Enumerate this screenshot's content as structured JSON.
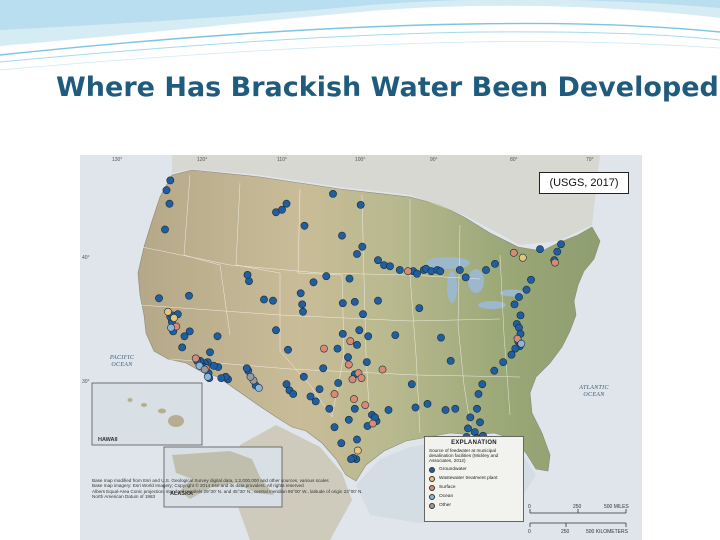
{
  "slide": {
    "title": "Where Has Brackish Water Been Developed?",
    "citation": "(USGS, 2017)"
  },
  "map": {
    "longitude_ticks": [
      "130°",
      "120°",
      "110°",
      "100°",
      "90°",
      "80°",
      "70°"
    ],
    "latitude_ticks": [
      "40°",
      "30°"
    ],
    "labels": {
      "pacific_ocean": "PACIFIC OCEAN",
      "atlantic_ocean": "ATLANTIC OCEAN",
      "hawaii": "HAWAII",
      "alaska": "ALASKA"
    },
    "credit_lines": [
      "Base map modified from Esri and U.S. Geological Survey digital data, 1:2,000,000 and other sources, various scales",
      "Base map imagery: Esri World Imagery; Copyright © 2014 Esri and its data providers. All rights reserved",
      "Albers Equal-Area Conic projection, standard parallels 29°30' N. and 45°30' N., central meridian 96°00' W., latitude of origin 23°00' N.",
      "North American Datum of 1983"
    ],
    "legend": {
      "title": "EXPLANATION",
      "subtitle": "Source of feedwater at municipal desalination facilities (Mickley and Associates, 2012)",
      "items": [
        {
          "label": "Groundwater",
          "color": "#1f5fa0"
        },
        {
          "label": "Wastewater treatment plant",
          "color": "#e8c47a"
        },
        {
          "label": "Surface",
          "color": "#d98a74"
        },
        {
          "label": "Ocean",
          "color": "#8ab6dc"
        },
        {
          "label": "Other",
          "color": "#9a9a9a"
        }
      ]
    },
    "scale": {
      "miles": [
        "0",
        "250",
        "500 MILES"
      ],
      "kilometers": [
        "0",
        "250",
        "500 KILOMETERS"
      ]
    },
    "sites": [
      {
        "type": "Groundwater",
        "lon": -122.3,
        "lat": 48.9
      },
      {
        "type": "Groundwater",
        "lon": -122.8,
        "lat": 48.1
      },
      {
        "type": "Groundwater",
        "lon": -108.2,
        "lat": 46.3
      },
      {
        "type": "Groundwater",
        "lon": -107.4,
        "lat": 46.5
      },
      {
        "type": "Groundwater",
        "lon": -106.8,
        "lat": 47.0
      },
      {
        "type": "Groundwater",
        "lon": -100.6,
        "lat": 47.8
      },
      {
        "type": "Groundwater",
        "lon": -96.9,
        "lat": 46.9
      },
      {
        "type": "Groundwater",
        "lon": -104.4,
        "lat": 45.2
      },
      {
        "type": "Groundwater",
        "lon": -99.4,
        "lat": 44.4
      },
      {
        "type": "Groundwater",
        "lon": -96.7,
        "lat": 43.5
      },
      {
        "type": "Groundwater",
        "lon": -97.4,
        "lat": 42.9
      },
      {
        "type": "Groundwater",
        "lon": -94.6,
        "lat": 42.4
      },
      {
        "type": "Groundwater",
        "lon": -93.8,
        "lat": 42.0
      },
      {
        "type": "Groundwater",
        "lon": -93.0,
        "lat": 41.9
      },
      {
        "type": "Groundwater",
        "lon": -91.7,
        "lat": 41.6
      },
      {
        "type": "Groundwater",
        "lon": -89.9,
        "lat": 41.5
      },
      {
        "type": "Groundwater",
        "lon": -89.4,
        "lat": 41.3
      },
      {
        "type": "Groundwater",
        "lon": -88.5,
        "lat": 41.6
      },
      {
        "type": "Groundwater",
        "lon": -88.2,
        "lat": 41.7
      },
      {
        "type": "Surface",
        "lon": -90.6,
        "lat": 41.5
      },
      {
        "type": "Groundwater",
        "lon": -87.5,
        "lat": 41.5
      },
      {
        "type": "Groundwater",
        "lon": -86.7,
        "lat": 41.6
      },
      {
        "type": "Groundwater",
        "lon": -86.3,
        "lat": 41.5
      },
      {
        "type": "Groundwater",
        "lon": -83.7,
        "lat": 41.6
      },
      {
        "type": "Groundwater",
        "lon": -82.9,
        "lat": 41.0
      },
      {
        "type": "Groundwater",
        "lon": -80.2,
        "lat": 41.6
      },
      {
        "type": "Groundwater",
        "lon": -79.0,
        "lat": 42.1
      },
      {
        "type": "Wastewater treatment plant",
        "lon": -75.3,
        "lat": 42.6
      },
      {
        "type": "Surface",
        "lon": -76.5,
        "lat": 43.0
      },
      {
        "type": "Groundwater",
        "lon": -73.0,
        "lat": 43.3
      },
      {
        "type": "Groundwater",
        "lon": -71.1,
        "lat": 42.4
      },
      {
        "type": "Groundwater",
        "lon": -70.7,
        "lat": 43.1
      },
      {
        "type": "Surface",
        "lon": -71.0,
        "lat": 42.2
      },
      {
        "type": "Groundwater",
        "lon": -70.2,
        "lat": 43.7
      },
      {
        "type": "Groundwater",
        "lon": -74.2,
        "lat": 40.8
      },
      {
        "type": "Groundwater",
        "lon": -74.8,
        "lat": 40.0
      },
      {
        "type": "Groundwater",
        "lon": -75.8,
        "lat": 39.4
      },
      {
        "type": "Groundwater",
        "lon": -76.4,
        "lat": 38.8
      },
      {
        "type": "Groundwater",
        "lon": -75.6,
        "lat": 37.9
      },
      {
        "type": "Groundwater",
        "lon": -76.1,
        "lat": 37.2
      },
      {
        "type": "Groundwater",
        "lon": -75.8,
        "lat": 36.9
      },
      {
        "type": "Groundwater",
        "lon": -75.6,
        "lat": 36.4
      },
      {
        "type": "Groundwater",
        "lon": -75.9,
        "lat": 35.8
      },
      {
        "type": "Groundwater",
        "lon": -75.7,
        "lat": 35.4
      },
      {
        "type": "Groundwater",
        "lon": -76.3,
        "lat": 35.2
      },
      {
        "type": "Groundwater",
        "lon": -76.8,
        "lat": 34.7
      },
      {
        "type": "Groundwater",
        "lon": -77.9,
        "lat": 34.1
      },
      {
        "type": "Groundwater",
        "lon": -79.1,
        "lat": 33.4
      },
      {
        "type": "Groundwater",
        "lon": -80.7,
        "lat": 32.3
      },
      {
        "type": "Groundwater",
        "lon": -81.2,
        "lat": 31.5
      },
      {
        "type": "Surface",
        "lon": -76.0,
        "lat": 36.0
      },
      {
        "type": "Ocean",
        "lon": -75.5,
        "lat": 35.6
      },
      {
        "type": "Groundwater",
        "lon": -81.4,
        "lat": 30.3
      },
      {
        "type": "Groundwater",
        "lon": -81.0,
        "lat": 29.2
      },
      {
        "type": "Groundwater",
        "lon": -80.6,
        "lat": 28.1
      },
      {
        "type": "Groundwater",
        "lon": -80.4,
        "lat": 27.4
      },
      {
        "type": "Groundwater",
        "lon": -80.2,
        "lat": 26.7
      },
      {
        "type": "Groundwater",
        "lon": -80.1,
        "lat": 26.2
      },
      {
        "type": "Groundwater",
        "lon": -80.3,
        "lat": 25.8
      },
      {
        "type": "Groundwater",
        "lon": -80.5,
        "lat": 25.5
      },
      {
        "type": "Groundwater",
        "lon": -81.8,
        "lat": 26.1
      },
      {
        "type": "Groundwater",
        "lon": -82.0,
        "lat": 26.6
      },
      {
        "type": "Groundwater",
        "lon": -82.4,
        "lat": 27.0
      },
      {
        "type": "Groundwater",
        "lon": -82.6,
        "lat": 27.6
      },
      {
        "type": "Groundwater",
        "lon": -82.8,
        "lat": 28.0
      },
      {
        "type": "Groundwater",
        "lon": -82.6,
        "lat": 28.7
      },
      {
        "type": "Groundwater",
        "lon": -81.7,
        "lat": 28.4
      },
      {
        "type": "Groundwater",
        "lon": -81.4,
        "lat": 27.9
      },
      {
        "type": "Groundwater",
        "lon": -81.1,
        "lat": 27.2
      },
      {
        "type": "Groundwater",
        "lon": -80.9,
        "lat": 26.4
      },
      {
        "type": "Groundwater",
        "lon": -81.3,
        "lat": 25.9
      },
      {
        "type": "Groundwater",
        "lon": -80.8,
        "lat": 25.1
      },
      {
        "type": "Groundwater",
        "lon": -81.6,
        "lat": 24.6
      },
      {
        "type": "Groundwater",
        "lon": -80.5,
        "lat": 24.9
      },
      {
        "type": "Wastewater treatment plant",
        "lon": -80.4,
        "lat": 26.0
      },
      {
        "type": "Wastewater treatment plant",
        "lon": -81.5,
        "lat": 26.8
      },
      {
        "type": "Surface",
        "lon": -82.1,
        "lat": 27.3
      },
      {
        "type": "Ocean",
        "lon": -80.7,
        "lat": 25.7
      },
      {
        "type": "Groundwater",
        "lon": -84.3,
        "lat": 30.3
      },
      {
        "type": "Groundwater",
        "lon": -85.6,
        "lat": 30.2
      },
      {
        "type": "Groundwater",
        "lon": -82.3,
        "lat": 29.6
      },
      {
        "type": "Groundwater",
        "lon": -88.0,
        "lat": 30.7
      },
      {
        "type": "Groundwater",
        "lon": -89.6,
        "lat": 30.4
      },
      {
        "type": "Groundwater",
        "lon": -90.1,
        "lat": 32.3
      },
      {
        "type": "Groundwater",
        "lon": -84.9,
        "lat": 34.2
      },
      {
        "type": "Groundwater",
        "lon": -86.2,
        "lat": 36.1
      },
      {
        "type": "Groundwater",
        "lon": -89.1,
        "lat": 38.5
      },
      {
        "type": "Groundwater",
        "lon": -92.3,
        "lat": 36.3
      },
      {
        "type": "Groundwater",
        "lon": -97.4,
        "lat": 35.5
      },
      {
        "type": "Groundwater",
        "lon": -95.9,
        "lat": 36.2
      },
      {
        "type": "Groundwater",
        "lon": -97.1,
        "lat": 36.7
      },
      {
        "type": "Groundwater",
        "lon": -99.3,
        "lat": 36.4
      },
      {
        "type": "Groundwater",
        "lon": -100.0,
        "lat": 35.2
      },
      {
        "type": "Groundwater",
        "lon": -98.6,
        "lat": 34.5
      },
      {
        "type": "Groundwater",
        "lon": -96.1,
        "lat": 34.1
      },
      {
        "type": "Groundwater",
        "lon": -97.7,
        "lat": 33.1
      },
      {
        "type": "Groundwater",
        "lon": -99.9,
        "lat": 32.4
      },
      {
        "type": "Groundwater",
        "lon": -101.9,
        "lat": 33.6
      },
      {
        "type": "Groundwater",
        "lon": -102.4,
        "lat": 31.9
      },
      {
        "type": "Groundwater",
        "lon": -103.6,
        "lat": 31.3
      },
      {
        "type": "Groundwater",
        "lon": -104.5,
        "lat": 32.9
      },
      {
        "type": "Groundwater",
        "lon": -106.6,
        "lat": 35.1
      },
      {
        "type": "Groundwater",
        "lon": -106.8,
        "lat": 32.3
      },
      {
        "type": "Groundwater",
        "lon": -106.4,
        "lat": 31.8
      },
      {
        "type": "Groundwater",
        "lon": -105.9,
        "lat": 31.5
      },
      {
        "type": "Groundwater",
        "lon": -108.2,
        "lat": 36.7
      },
      {
        "type": "Groundwater",
        "lon": -110.9,
        "lat": 32.2
      },
      {
        "type": "Groundwater",
        "lon": -111.9,
        "lat": 33.4
      },
      {
        "type": "Groundwater",
        "lon": -112.1,
        "lat": 33.6
      },
      {
        "type": "Groundwater",
        "lon": -114.6,
        "lat": 32.7
      },
      {
        "type": "Groundwater",
        "lon": -114.9,
        "lat": 32.9
      },
      {
        "type": "Groundwater",
        "lon": -115.5,
        "lat": 32.8
      },
      {
        "type": "Groundwater",
        "lon": -115.9,
        "lat": 33.7
      },
      {
        "type": "Groundwater",
        "lon": -116.5,
        "lat": 33.8
      },
      {
        "type": "Other",
        "lon": -111.2,
        "lat": 32.6
      },
      {
        "type": "Other",
        "lon": -111.6,
        "lat": 32.9
      },
      {
        "type": "Ocean",
        "lon": -110.5,
        "lat": 32.0
      },
      {
        "type": "Groundwater",
        "lon": -111.8,
        "lat": 40.7
      },
      {
        "type": "Groundwater",
        "lon": -112.0,
        "lat": 41.2
      },
      {
        "type": "Groundwater",
        "lon": -109.8,
        "lat": 39.2
      },
      {
        "type": "Groundwater",
        "lon": -108.6,
        "lat": 39.1
      },
      {
        "type": "Groundwater",
        "lon": -104.9,
        "lat": 39.7
      },
      {
        "type": "Groundwater",
        "lon": -104.7,
        "lat": 38.8
      },
      {
        "type": "Groundwater",
        "lon": -104.6,
        "lat": 38.2
      },
      {
        "type": "Groundwater",
        "lon": -103.2,
        "lat": 40.6
      },
      {
        "type": "Groundwater",
        "lon": -101.5,
        "lat": 41.1
      },
      {
        "type": "Groundwater",
        "lon": -98.4,
        "lat": 40.9
      },
      {
        "type": "Groundwater",
        "lon": -97.7,
        "lat": 39.0
      },
      {
        "type": "Groundwater",
        "lon": -99.3,
        "lat": 38.9
      },
      {
        "type": "Groundwater",
        "lon": -96.6,
        "lat": 38.0
      },
      {
        "type": "Groundwater",
        "lon": -94.6,
        "lat": 39.1
      },
      {
        "type": "Groundwater",
        "lon": -119.8,
        "lat": 39.5
      },
      {
        "type": "Groundwater",
        "lon": -116.0,
        "lat": 36.2
      },
      {
        "type": "Groundwater",
        "lon": -117.0,
        "lat": 34.9
      },
      {
        "type": "Groundwater",
        "lon": -117.3,
        "lat": 34.1
      },
      {
        "type": "Groundwater",
        "lon": -117.7,
        "lat": 34.0
      },
      {
        "type": "Groundwater",
        "lon": -118.1,
        "lat": 33.9
      },
      {
        "type": "Groundwater",
        "lon": -118.3,
        "lat": 34.2
      },
      {
        "type": "Groundwater",
        "lon": -118.7,
        "lat": 34.2
      },
      {
        "type": "Groundwater",
        "lon": -117.9,
        "lat": 33.7
      },
      {
        "type": "Groundwater",
        "lon": -117.2,
        "lat": 33.2
      },
      {
        "type": "Groundwater",
        "lon": -117.1,
        "lat": 32.8
      },
      {
        "type": "Groundwater",
        "lon": -120.7,
        "lat": 35.3
      },
      {
        "type": "Groundwater",
        "lon": -121.9,
        "lat": 36.6
      },
      {
        "type": "Groundwater",
        "lon": -122.1,
        "lat": 37.4
      },
      {
        "type": "Groundwater",
        "lon": -122.3,
        "lat": 37.8
      },
      {
        "type": "Groundwater",
        "lon": -122.0,
        "lat": 37.9
      },
      {
        "type": "Groundwater",
        "lon": -121.3,
        "lat": 38.0
      },
      {
        "type": "Groundwater",
        "lon": -123.8,
        "lat": 39.3
      },
      {
        "type": "Groundwater",
        "lon": -120.4,
        "lat": 36.2
      },
      {
        "type": "Groundwater",
        "lon": -119.7,
        "lat": 36.6
      },
      {
        "type": "Wastewater treatment plant",
        "lon": -122.6,
        "lat": 38.2
      },
      {
        "type": "Wastewater treatment plant",
        "lon": -121.8,
        "lat": 37.7
      },
      {
        "type": "Surface",
        "lon": -121.5,
        "lat": 37.0
      },
      {
        "type": "Surface",
        "lon": -118.9,
        "lat": 34.4
      },
      {
        "type": "Surface",
        "lon": -117.5,
        "lat": 33.6
      },
      {
        "type": "Ocean",
        "lon": -122.2,
        "lat": 36.9
      },
      {
        "type": "Ocean",
        "lon": -118.4,
        "lat": 33.8
      },
      {
        "type": "Ocean",
        "lon": -117.3,
        "lat": 32.9
      },
      {
        "type": "Other",
        "lon": -117.7,
        "lat": 33.5
      },
      {
        "type": "Surface",
        "lon": -101.8,
        "lat": 35.2
      },
      {
        "type": "Surface",
        "lon": -100.4,
        "lat": 31.5
      },
      {
        "type": "Surface",
        "lon": -98.5,
        "lat": 33.9
      },
      {
        "type": "Surface",
        "lon": -97.2,
        "lat": 33.2
      },
      {
        "type": "Surface",
        "lon": -96.8,
        "lat": 32.8
      },
      {
        "type": "Surface",
        "lon": -98.0,
        "lat": 32.7
      },
      {
        "type": "Surface",
        "lon": -97.8,
        "lat": 31.1
      },
      {
        "type": "Surface",
        "lon": -96.3,
        "lat": 30.6
      },
      {
        "type": "Surface",
        "lon": -98.3,
        "lat": 35.8
      },
      {
        "type": "Surface",
        "lon": -94.0,
        "lat": 33.5
      },
      {
        "type": "Groundwater",
        "lon": -98.5,
        "lat": 29.4
      },
      {
        "type": "Groundwater",
        "lon": -97.7,
        "lat": 30.3
      },
      {
        "type": "Groundwater",
        "lon": -97.4,
        "lat": 27.8
      },
      {
        "type": "Groundwater",
        "lon": -97.5,
        "lat": 26.2
      },
      {
        "type": "Groundwater",
        "lon": -97.9,
        "lat": 26.3
      },
      {
        "type": "Groundwater",
        "lon": -98.2,
        "lat": 26.2
      },
      {
        "type": "Groundwater",
        "lon": -99.5,
        "lat": 27.5
      },
      {
        "type": "Groundwater",
        "lon": -96.0,
        "lat": 28.9
      },
      {
        "type": "Groundwater",
        "lon": -95.4,
        "lat": 29.8
      },
      {
        "type": "Groundwater",
        "lon": -94.8,
        "lat": 29.3
      },
      {
        "type": "Groundwater",
        "lon": -95.0,
        "lat": 29.6
      },
      {
        "type": "Groundwater",
        "lon": -93.2,
        "lat": 30.2
      },
      {
        "type": "Groundwater",
        "lon": -100.4,
        "lat": 28.8
      },
      {
        "type": "Groundwater",
        "lon": -101.1,
        "lat": 30.3
      },
      {
        "type": "Groundwater",
        "lon": -102.9,
        "lat": 30.9
      },
      {
        "type": "Wastewater treatment plant",
        "lon": -97.3,
        "lat": 26.9
      },
      {
        "type": "Surface",
        "lon": -95.3,
        "lat": 29.1
      },
      {
        "type": "Groundwater",
        "lon": -122.4,
        "lat": 47.0
      },
      {
        "type": "Groundwater",
        "lon": -123.0,
        "lat": 44.9
      }
    ]
  }
}
